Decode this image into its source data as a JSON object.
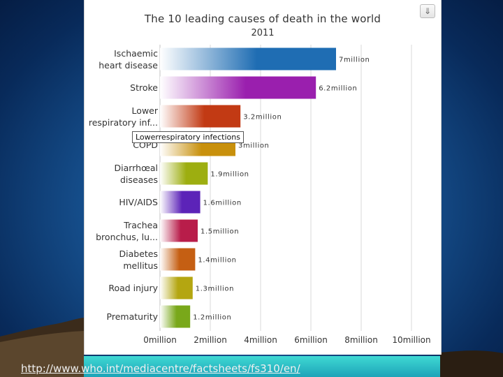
{
  "chart_data": {
    "type": "bar",
    "orientation": "horizontal",
    "title": "The 10 leading causes of death in the world",
    "subtitle": "2011",
    "categories": [
      [
        "Ischaemic",
        "heart disease"
      ],
      [
        "Stroke"
      ],
      [
        "Lower",
        "respiratory inf..."
      ],
      [
        "COPD"
      ],
      [
        "Diarrhœal",
        "diseases"
      ],
      [
        "HIV/AIDS"
      ],
      [
        "Trachea",
        "bronchus, lu..."
      ],
      [
        "Diabetes",
        "mellitus"
      ],
      [
        "Road injury"
      ],
      [
        "Prematurity"
      ]
    ],
    "values": [
      7,
      6.2,
      3.2,
      3,
      1.9,
      1.6,
      1.5,
      1.4,
      1.3,
      1.2
    ],
    "value_labels": [
      "7million",
      "6.2million",
      "3.2million",
      "3million",
      "1.9million",
      "1.6million",
      "1.5million",
      "1.4million",
      "1.3million",
      "1.2million"
    ],
    "colors": [
      "#1f6db3",
      "#9a1fae",
      "#c23a14",
      "#c8900c",
      "#9dae10",
      "#5c23b8",
      "#b81d4a",
      "#c55f13",
      "#b4a611",
      "#79a81a"
    ],
    "xlim": [
      0,
      10
    ],
    "x_ticks": [
      0,
      2,
      4,
      6,
      8,
      10
    ],
    "x_tick_labels": [
      "0million",
      "2million",
      "4million",
      "6million",
      "8million",
      "10million"
    ],
    "grid": true,
    "tooltip": "Lowerrespiratory infections"
  },
  "footer": {
    "url": "http://www.who.int/mediacentre/factsheets/fs310/en/"
  },
  "export_icon": "download-icon"
}
